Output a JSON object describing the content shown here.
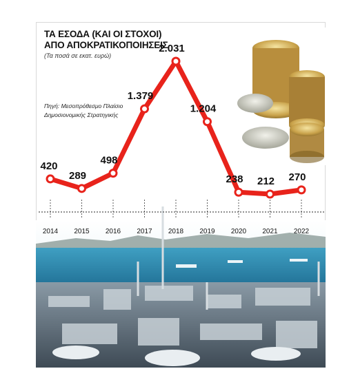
{
  "title_line1": "ΤΑ ΕΣΟΔΑ (ΚΑΙ ΟΙ ΣΤΟΧΟΙ)",
  "title_line2": "ΑΠΟ ΑΠΟΚΡΑΤΙΚΟΠΟΙΗΣΕΙΣ",
  "subtitle": "(Τα ποσά σε εκατ. ευρώ)",
  "source_line1": "Πηγή: Μεσοπρόθεσμο Πλαίσιο",
  "source_line2": "Δημοσιονομικής Στρατηγικής",
  "colors": {
    "line": "#e8231b",
    "marker_fill": "#ffffff",
    "sea": "#2f8fb4",
    "sky": "#dcedf3"
  },
  "chart_data": {
    "type": "line",
    "title": "ΤΑ ΕΣΟΔΑ (ΚΑΙ ΟΙ ΣΤΟΧΟΙ) ΑΠΟ ΑΠΟΚΡΑΤΙΚΟΠΟΙΗΣΕΙΣ",
    "xlabel": "",
    "ylabel": "",
    "categories": [
      "2014",
      "2015",
      "2016",
      "2017",
      "2018",
      "2019",
      "2020",
      "2021",
      "2022"
    ],
    "values": [
      420,
      289,
      498,
      1379,
      2031,
      1204,
      238,
      212,
      270
    ],
    "data_labels": [
      "420",
      "289",
      "498",
      "1.379",
      "2.031",
      "1.204",
      "238",
      "212",
      "270"
    ],
    "ylim": [
      0,
      2031
    ],
    "grid": false,
    "legend": "none"
  }
}
